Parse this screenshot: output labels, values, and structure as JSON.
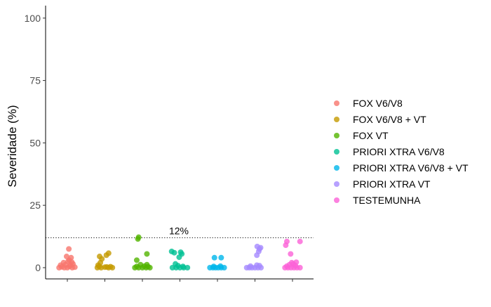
{
  "chart_data": {
    "type": "scatter",
    "ylabel": "Severidade (%)",
    "xlabel": "",
    "ylim": [
      -4.5,
      105
    ],
    "yticks": [
      0,
      25,
      50,
      75,
      100
    ],
    "x_tick_labels_shown": false,
    "grid": false,
    "legend_position": "right",
    "reference_line": {
      "y": 12,
      "label": "12%",
      "style": "dotted"
    },
    "categories": [
      "FOX V6/V8",
      "FOX V6/V8 + VT",
      "FOX VT",
      "PRIORI XTRA V6/V8",
      "PRIORI XTRA V6/V8 + VT",
      "PRIORI XTRA VT",
      "TESTEMUNHA"
    ],
    "series": [
      {
        "name": "FOX V6/V8",
        "color": "#F8766D",
        "points": [
          [
            -0.22,
            0
          ],
          [
            -0.15,
            0.3
          ],
          [
            -0.08,
            0
          ],
          [
            0,
            0
          ],
          [
            0.06,
            0.5
          ],
          [
            0.13,
            0
          ],
          [
            0.2,
            0.2
          ],
          [
            -0.18,
            1
          ],
          [
            -0.05,
            1.2
          ],
          [
            0.08,
            1
          ],
          [
            0.15,
            1.5
          ],
          [
            -0.1,
            2
          ],
          [
            0.02,
            2.5
          ],
          [
            0.12,
            2.2
          ],
          [
            0.05,
            3
          ],
          [
            0.1,
            4
          ],
          [
            -0.02,
            4.5
          ],
          [
            0.04,
            7.5
          ]
        ]
      },
      {
        "name": "FOX V6/V8 + VT",
        "color": "#C49A00",
        "points": [
          [
            -0.2,
            0
          ],
          [
            -0.1,
            0
          ],
          [
            0,
            0.2
          ],
          [
            0.1,
            0
          ],
          [
            0.2,
            0
          ],
          [
            -0.15,
            0.5
          ],
          [
            0.05,
            0.3
          ],
          [
            0.15,
            0.4
          ],
          [
            -0.18,
            1
          ],
          [
            -0.12,
            2
          ],
          [
            -0.08,
            3.5
          ],
          [
            -0.14,
            4.5
          ],
          [
            0.04,
            5
          ],
          [
            0.1,
            5.8
          ]
        ]
      },
      {
        "name": "FOX VT",
        "color": "#53B400",
        "points": [
          [
            -0.2,
            0
          ],
          [
            -0.1,
            0
          ],
          [
            0,
            0
          ],
          [
            0.1,
            0
          ],
          [
            0.2,
            0
          ],
          [
            -0.15,
            0.5
          ],
          [
            0.05,
            0.6
          ],
          [
            0.15,
            0.4
          ],
          [
            -0.05,
            1.2
          ],
          [
            0.12,
            1.2
          ],
          [
            -0.15,
            3
          ],
          [
            0.12,
            5.5
          ],
          [
            -0.12,
            11.5
          ],
          [
            -0.1,
            12.2
          ]
        ]
      },
      {
        "name": "PRIORI XTRA V6/V8",
        "color": "#00C094",
        "points": [
          [
            -0.2,
            0
          ],
          [
            -0.1,
            0
          ],
          [
            0,
            0
          ],
          [
            0.1,
            0
          ],
          [
            0.2,
            0
          ],
          [
            -0.05,
            0.8
          ],
          [
            0.08,
            0.5
          ],
          [
            -0.12,
            1.5
          ],
          [
            -0.02,
            4.2
          ],
          [
            0.05,
            5.5
          ],
          [
            -0.22,
            6.5
          ],
          [
            -0.15,
            6
          ],
          [
            0.02,
            6.2
          ]
        ]
      },
      {
        "name": "PRIORI XTRA V6/V8 + VT",
        "color": "#00B6EB",
        "points": [
          [
            -0.2,
            0
          ],
          [
            -0.12,
            0
          ],
          [
            -0.05,
            0
          ],
          [
            0.02,
            0
          ],
          [
            0.1,
            0
          ],
          [
            0.18,
            0
          ],
          [
            -0.1,
            0.5
          ],
          [
            0.08,
            0.6
          ],
          [
            -0.08,
            4
          ],
          [
            0.1,
            4
          ]
        ]
      },
      {
        "name": "PRIORI XTRA VT",
        "color": "#A58AFF",
        "points": [
          [
            -0.22,
            0
          ],
          [
            -0.15,
            0
          ],
          [
            -0.08,
            0
          ],
          [
            0,
            0
          ],
          [
            0.08,
            0
          ],
          [
            0.16,
            0
          ],
          [
            -0.12,
            0.6
          ],
          [
            0.05,
            1
          ],
          [
            0.12,
            0.8
          ],
          [
            0.05,
            5
          ],
          [
            0.1,
            6.5
          ],
          [
            0.12,
            7.5
          ],
          [
            0.06,
            8.5
          ],
          [
            0.15,
            8
          ]
        ]
      },
      {
        "name": "TESTEMUNHA",
        "color": "#FB61D7",
        "points": [
          [
            -0.2,
            0
          ],
          [
            -0.12,
            0
          ],
          [
            -0.04,
            0
          ],
          [
            0.04,
            0
          ],
          [
            0.12,
            0
          ],
          [
            0.2,
            0
          ],
          [
            -0.15,
            0.6
          ],
          [
            0.08,
            0.8
          ],
          [
            -0.08,
            1.2
          ],
          [
            0.02,
            1.5
          ],
          [
            -0.02,
            2
          ],
          [
            0.1,
            2.2
          ],
          [
            -0.05,
            5.5
          ],
          [
            -0.18,
            9
          ],
          [
            -0.15,
            10.5
          ],
          [
            0.2,
            10.5
          ]
        ]
      }
    ]
  }
}
